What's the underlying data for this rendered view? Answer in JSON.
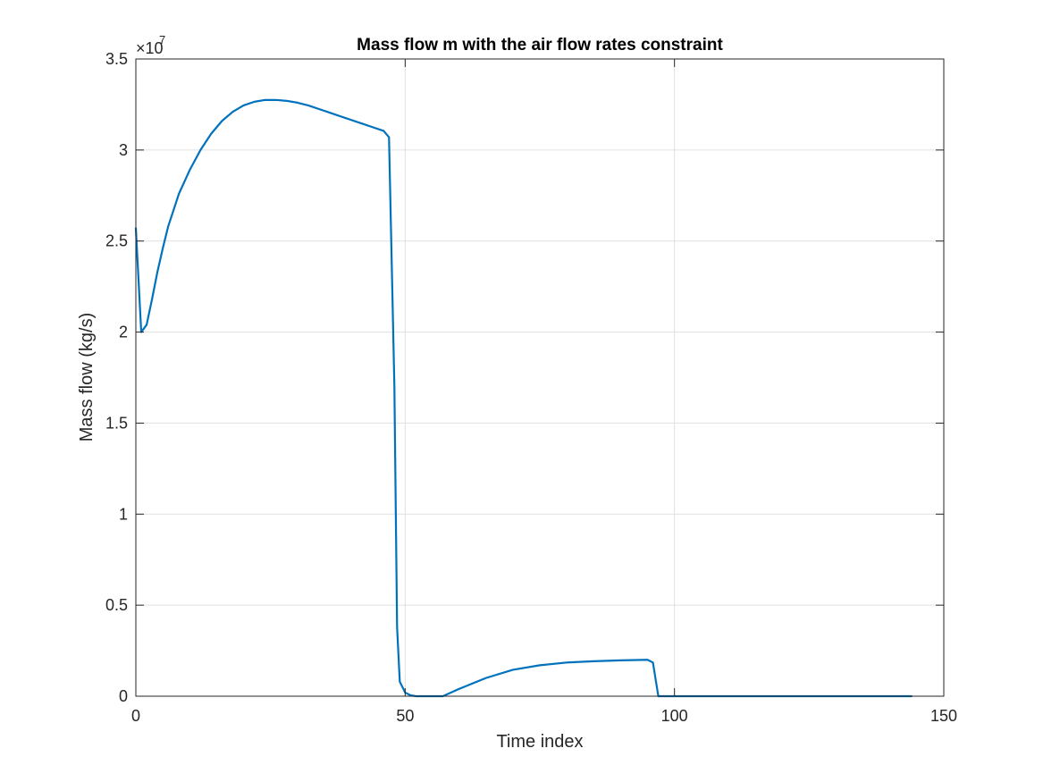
{
  "chart_data": {
    "type": "line",
    "title": "Mass flow m with the air flow rates constraint",
    "xlabel": "Time index",
    "ylabel": "Mass flow (kg/s)",
    "xlim": [
      0,
      150
    ],
    "ylim": [
      0,
      35000000
    ],
    "x_ticks": [
      0,
      50,
      100,
      150
    ],
    "x_tick_labels": [
      "0",
      "50",
      "100",
      "150"
    ],
    "y_ticks": [
      0,
      5000000,
      10000000,
      15000000,
      20000000,
      25000000,
      30000000,
      35000000
    ],
    "y_tick_labels": [
      "0",
      "0.5",
      "1",
      "1.5",
      "2",
      "2.5",
      "3",
      "3.5"
    ],
    "y_exponent_base": "×10",
    "y_exponent_power": "7",
    "grid": true,
    "line_color": "#0072BD",
    "series": [
      {
        "x": [
          0,
          1,
          2,
          3,
          4,
          5,
          6,
          8,
          10,
          12,
          14,
          16,
          18,
          20,
          22,
          24,
          26,
          28,
          30,
          32,
          34,
          36,
          38,
          40,
          42,
          44,
          46,
          47,
          48,
          48.5,
          49,
          50,
          51,
          52,
          53,
          55,
          57,
          60,
          65,
          70,
          75,
          80,
          85,
          90,
          95,
          96,
          97,
          98,
          100,
          110,
          120,
          130,
          144
        ],
        "y": [
          25700000,
          20000000,
          20400000,
          21800000,
          23300000,
          24600000,
          25800000,
          27600000,
          28900000,
          30000000,
          30900000,
          31600000,
          32100000,
          32450000,
          32650000,
          32750000,
          32750000,
          32700000,
          32600000,
          32450000,
          32250000,
          32050000,
          31850000,
          31650000,
          31450000,
          31250000,
          31050000,
          30700000,
          17000000,
          3800000,
          800000,
          200000,
          50000,
          0,
          0,
          0,
          0,
          400000,
          1000000,
          1450000,
          1700000,
          1850000,
          1920000,
          1970000,
          2000000,
          1850000,
          0,
          0,
          0,
          0,
          0,
          0,
          0
        ]
      }
    ]
  }
}
